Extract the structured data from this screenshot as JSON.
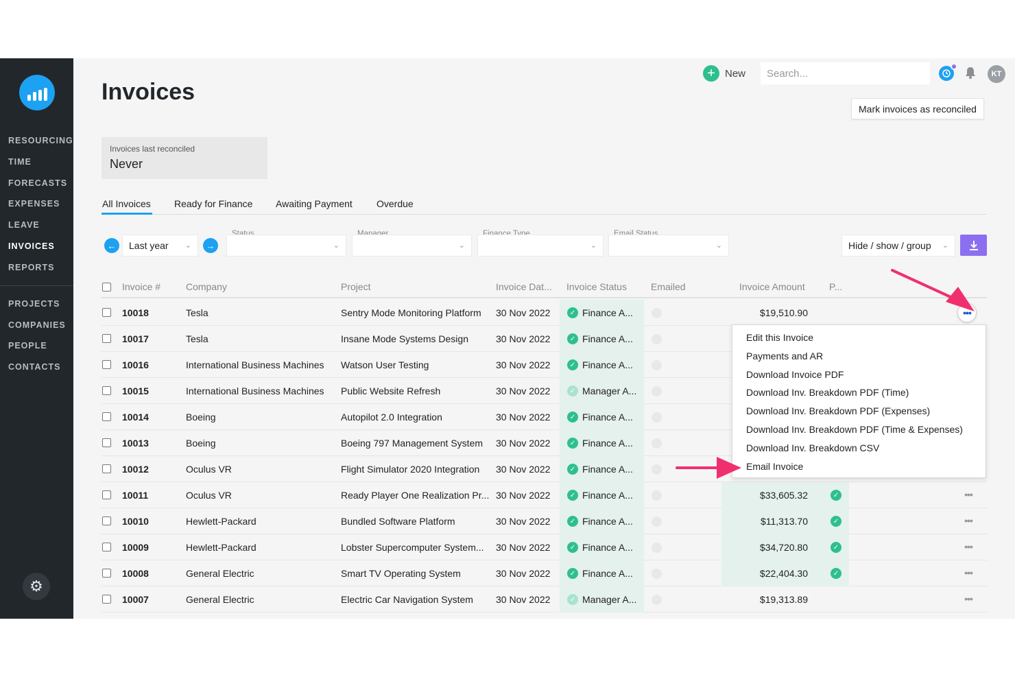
{
  "sidebar": {
    "items_top": [
      "RESOURCING",
      "TIME",
      "FORECASTS",
      "EXPENSES",
      "LEAVE",
      "INVOICES",
      "REPORTS"
    ],
    "items_bottom": [
      "PROJECTS",
      "COMPANIES",
      "PEOPLE",
      "CONTACTS"
    ],
    "active": "INVOICES"
  },
  "header": {
    "title": "Invoices",
    "new_label": "New",
    "search_placeholder": "Search...",
    "avatar_initials": "KT",
    "reconcile_label": "Mark invoices as reconciled"
  },
  "reconciled": {
    "label": "Invoices last reconciled",
    "value": "Never"
  },
  "tabs": [
    "All Invoices",
    "Ready for Finance",
    "Awaiting Payment",
    "Overdue"
  ],
  "filters": {
    "period": "Last year",
    "status_label": "Status",
    "manager_label": "Manager",
    "finance_type_label": "Finance Type",
    "email_status_label": "Email Status",
    "hide_show_label": "Hide / show / group"
  },
  "table": {
    "headers": [
      "Invoice #",
      "Company",
      "Project",
      "Invoice Dat...",
      "Invoice Status",
      "Emailed",
      "Invoice Amount",
      "P..."
    ],
    "rows": [
      {
        "num": "10018",
        "company": "Tesla",
        "project": "Sentry Mode Monitoring Platform",
        "date": "30 Nov 2022",
        "status": "Finance A...",
        "amount": "$19,510.90",
        "paid": false
      },
      {
        "num": "10017",
        "company": "Tesla",
        "project": "Insane Mode Systems Design",
        "date": "30 Nov 2022",
        "status": "Finance A...",
        "amount": "",
        "paid": false
      },
      {
        "num": "10016",
        "company": "International Business Machines",
        "project": "Watson User Testing",
        "date": "30 Nov 2022",
        "status": "Finance A...",
        "amount": "",
        "paid": false
      },
      {
        "num": "10015",
        "company": "International Business Machines",
        "project": "Public Website Refresh",
        "date": "30 Nov 2022",
        "status": "Manager A...",
        "amount": "",
        "paid": false
      },
      {
        "num": "10014",
        "company": "Boeing",
        "project": "Autopilot 2.0 Integration",
        "date": "30 Nov 2022",
        "status": "Finance A...",
        "amount": "",
        "paid": false
      },
      {
        "num": "10013",
        "company": "Boeing",
        "project": "Boeing 797 Management System",
        "date": "30 Nov 2022",
        "status": "Finance A...",
        "amount": "",
        "paid": false
      },
      {
        "num": "10012",
        "company": "Oculus VR",
        "project": "Flight Simulator 2020 Integration",
        "date": "30 Nov 2022",
        "status": "Finance A...",
        "amount": "",
        "paid": false
      },
      {
        "num": "10011",
        "company": "Oculus VR",
        "project": "Ready Player One Realization Pr...",
        "date": "30 Nov 2022",
        "status": "Finance A...",
        "amount": "$33,605.32",
        "paid": true
      },
      {
        "num": "10010",
        "company": "Hewlett-Packard",
        "project": "Bundled Software Platform",
        "date": "30 Nov 2022",
        "status": "Finance A...",
        "amount": "$11,313.70",
        "paid": true
      },
      {
        "num": "10009",
        "company": "Hewlett-Packard",
        "project": "Lobster Supercomputer System...",
        "date": "30 Nov 2022",
        "status": "Finance A...",
        "amount": "$34,720.80",
        "paid": true
      },
      {
        "num": "10008",
        "company": "General Electric",
        "project": "Smart TV Operating System",
        "date": "30 Nov 2022",
        "status": "Finance A...",
        "amount": "$22,404.30",
        "paid": true
      },
      {
        "num": "10007",
        "company": "General Electric",
        "project": "Electric Car Navigation System",
        "date": "30 Nov 2022",
        "status": "Manager A...",
        "amount": "$19,313.89",
        "paid": false
      }
    ]
  },
  "menu": {
    "items": [
      "Edit this Invoice",
      "Payments and AR",
      "Download Invoice PDF",
      "Download Inv. Breakdown PDF (Time)",
      "Download Inv. Breakdown PDF (Expenses)",
      "Download Inv. Breakdown PDF (Time & Expenses)",
      "Download Inv. Breakdown CSV",
      "Email Invoice"
    ]
  },
  "colors": {
    "accent": "#1da1f2",
    "success": "#2fbf8f",
    "purple": "#8b6ff0",
    "annotation": "#f0306e",
    "sidebar": "#22272b"
  },
  "icons": [
    "logo-icon",
    "gear-icon",
    "plus-icon",
    "clock-icon",
    "bell-icon",
    "download-icon",
    "arrow-left-icon",
    "arrow-right-icon",
    "chevron-down-icon",
    "check-icon",
    "more-icon"
  ]
}
